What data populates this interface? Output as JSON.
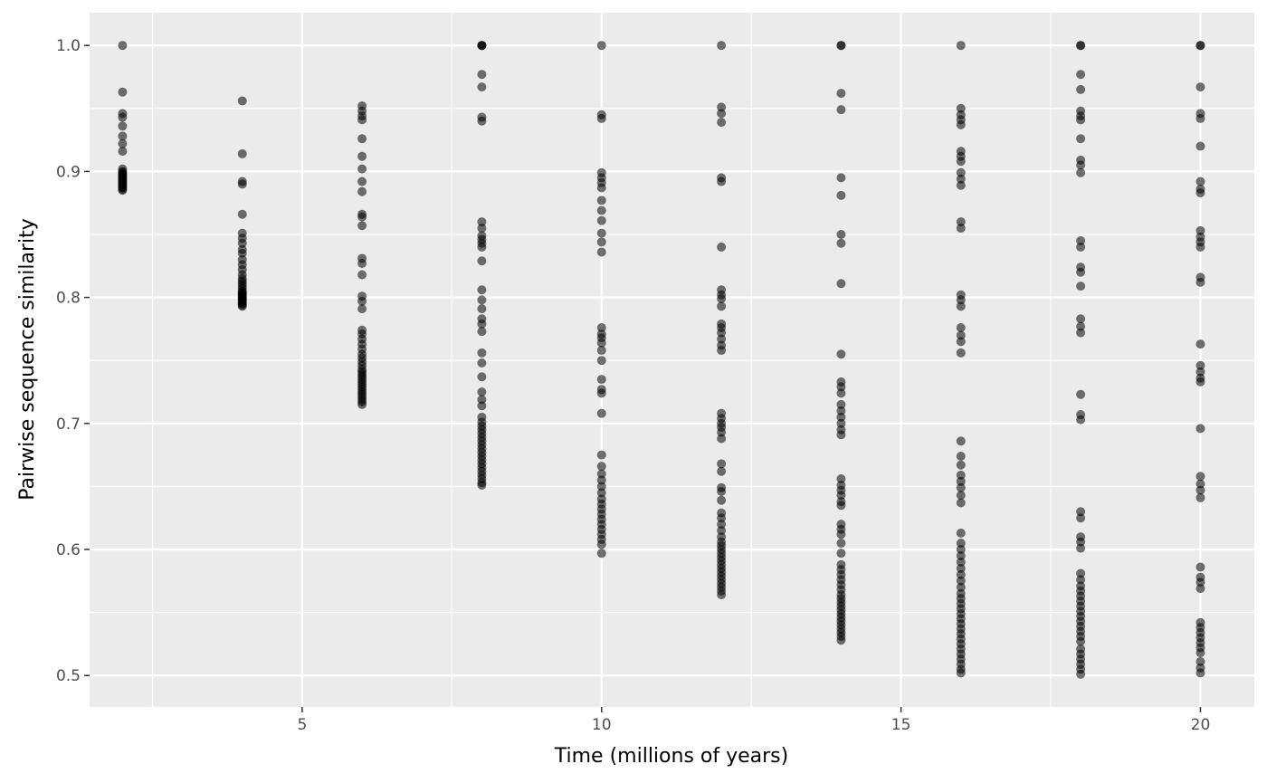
{
  "chart_data": {
    "type": "scatter",
    "title": "",
    "xlabel": "Time (millions of years)",
    "ylabel": "Pairwise sequence similarity",
    "xlim": [
      1.45,
      20.9
    ],
    "ylim": [
      0.475,
      1.026
    ],
    "x_ticks": [
      5,
      10,
      15,
      20
    ],
    "x_tick_labels": [
      "5",
      "10",
      "15",
      "20"
    ],
    "y_ticks": [
      0.5,
      0.6,
      0.7,
      0.8,
      0.9,
      1.0
    ],
    "y_tick_labels": [
      "0.5",
      "0.6",
      "0.7",
      "0.8",
      "0.9",
      "1.0"
    ],
    "grid": true,
    "legend": "none",
    "point_color": "#000000",
    "point_opacity": 0.55,
    "panel_background": "#ebebeb",
    "grid_color": "#ffffff",
    "series": [
      {
        "x": 2,
        "values": [
          1.0,
          0.963,
          0.946,
          0.943,
          0.936,
          0.928,
          0.922,
          0.916,
          0.902,
          0.9,
          0.899,
          0.898,
          0.897,
          0.896,
          0.895,
          0.894,
          0.893,
          0.892,
          0.891,
          0.89,
          0.889,
          0.888,
          0.887,
          0.886,
          0.885
        ]
      },
      {
        "x": 4,
        "values": [
          0.956,
          0.914,
          0.892,
          0.89,
          0.866,
          0.851,
          0.847,
          0.843,
          0.838,
          0.835,
          0.83,
          0.826,
          0.822,
          0.818,
          0.815,
          0.813,
          0.811,
          0.809,
          0.807,
          0.805,
          0.804,
          0.803,
          0.802,
          0.801,
          0.8,
          0.799,
          0.798,
          0.797,
          0.796,
          0.795,
          0.794,
          0.793
        ]
      },
      {
        "x": 6,
        "values": [
          0.952,
          0.948,
          0.944,
          0.941,
          0.926,
          0.912,
          0.902,
          0.892,
          0.884,
          0.866,
          0.864,
          0.857,
          0.831,
          0.827,
          0.818,
          0.801,
          0.797,
          0.791,
          0.774,
          0.771,
          0.767,
          0.763,
          0.759,
          0.755,
          0.752,
          0.749,
          0.746,
          0.743,
          0.741,
          0.739,
          0.737,
          0.735,
          0.733,
          0.731,
          0.729,
          0.727,
          0.725,
          0.723,
          0.721,
          0.719,
          0.717,
          0.715
        ]
      },
      {
        "x": 8,
        "values": [
          1.0,
          1.0,
          1.0,
          0.977,
          0.967,
          0.943,
          0.94,
          0.86,
          0.855,
          0.849,
          0.846,
          0.843,
          0.84,
          0.829,
          0.806,
          0.798,
          0.791,
          0.783,
          0.779,
          0.773,
          0.756,
          0.748,
          0.737,
          0.725,
          0.719,
          0.714,
          0.705,
          0.701,
          0.698,
          0.695,
          0.692,
          0.689,
          0.686,
          0.683,
          0.68,
          0.677,
          0.674,
          0.671,
          0.668,
          0.665,
          0.662,
          0.659,
          0.656,
          0.653,
          0.651
        ]
      },
      {
        "x": 10,
        "values": [
          1.0,
          0.945,
          0.942,
          0.899,
          0.895,
          0.891,
          0.887,
          0.877,
          0.869,
          0.861,
          0.851,
          0.844,
          0.836,
          0.776,
          0.771,
          0.768,
          0.764,
          0.758,
          0.75,
          0.735,
          0.727,
          0.724,
          0.708,
          0.675,
          0.666,
          0.66,
          0.655,
          0.65,
          0.645,
          0.64,
          0.636,
          0.632,
          0.628,
          0.624,
          0.62,
          0.616,
          0.612,
          0.608,
          0.604,
          0.597
        ]
      },
      {
        "x": 12,
        "values": [
          1.0,
          0.951,
          0.946,
          0.939,
          0.895,
          0.892,
          0.84,
          0.806,
          0.802,
          0.799,
          0.793,
          0.779,
          0.776,
          0.772,
          0.767,
          0.762,
          0.758,
          0.708,
          0.704,
          0.7,
          0.697,
          0.693,
          0.688,
          0.668,
          0.662,
          0.649,
          0.646,
          0.639,
          0.629,
          0.625,
          0.62,
          0.615,
          0.61,
          0.606,
          0.603,
          0.6,
          0.597,
          0.594,
          0.591,
          0.588,
          0.585,
          0.582,
          0.579,
          0.576,
          0.573,
          0.57,
          0.567,
          0.564
        ]
      },
      {
        "x": 14,
        "values": [
          1.0,
          1.0,
          0.962,
          0.949,
          0.895,
          0.881,
          0.85,
          0.843,
          0.811,
          0.755,
          0.733,
          0.729,
          0.724,
          0.715,
          0.71,
          0.705,
          0.7,
          0.695,
          0.691,
          0.656,
          0.651,
          0.647,
          0.643,
          0.638,
          0.635,
          0.62,
          0.616,
          0.612,
          0.605,
          0.597,
          0.588,
          0.584,
          0.58,
          0.576,
          0.572,
          0.568,
          0.564,
          0.561,
          0.558,
          0.555,
          0.552,
          0.549,
          0.546,
          0.543,
          0.54,
          0.537,
          0.534,
          0.531,
          0.528
        ]
      },
      {
        "x": 16,
        "values": [
          1.0,
          0.95,
          0.945,
          0.941,
          0.937,
          0.916,
          0.912,
          0.908,
          0.899,
          0.894,
          0.889,
          0.86,
          0.855,
          0.802,
          0.798,
          0.793,
          0.776,
          0.77,
          0.765,
          0.756,
          0.686,
          0.674,
          0.667,
          0.659,
          0.654,
          0.649,
          0.643,
          0.637,
          0.613,
          0.605,
          0.6,
          0.595,
          0.59,
          0.585,
          0.58,
          0.575,
          0.57,
          0.565,
          0.561,
          0.557,
          0.553,
          0.549,
          0.545,
          0.541,
          0.537,
          0.533,
          0.529,
          0.525,
          0.521,
          0.517,
          0.513,
          0.509,
          0.505,
          0.502
        ]
      },
      {
        "x": 18,
        "values": [
          1.0,
          1.0,
          0.977,
          0.965,
          0.948,
          0.944,
          0.941,
          0.926,
          0.909,
          0.905,
          0.899,
          0.845,
          0.84,
          0.824,
          0.82,
          0.809,
          0.783,
          0.777,
          0.772,
          0.723,
          0.707,
          0.703,
          0.63,
          0.625,
          0.61,
          0.606,
          0.601,
          0.581,
          0.576,
          0.571,
          0.567,
          0.563,
          0.559,
          0.555,
          0.551,
          0.547,
          0.543,
          0.539,
          0.535,
          0.531,
          0.527,
          0.521,
          0.517,
          0.513,
          0.509,
          0.505,
          0.501
        ]
      },
      {
        "x": 20,
        "values": [
          1.0,
          1.0,
          0.967,
          0.946,
          0.942,
          0.92,
          0.892,
          0.886,
          0.883,
          0.853,
          0.848,
          0.844,
          0.84,
          0.816,
          0.812,
          0.763,
          0.746,
          0.741,
          0.736,
          0.733,
          0.696,
          0.658,
          0.652,
          0.647,
          0.641,
          0.586,
          0.578,
          0.574,
          0.569,
          0.542,
          0.538,
          0.534,
          0.53,
          0.526,
          0.522,
          0.518,
          0.511,
          0.506,
          0.502
        ]
      }
    ]
  }
}
